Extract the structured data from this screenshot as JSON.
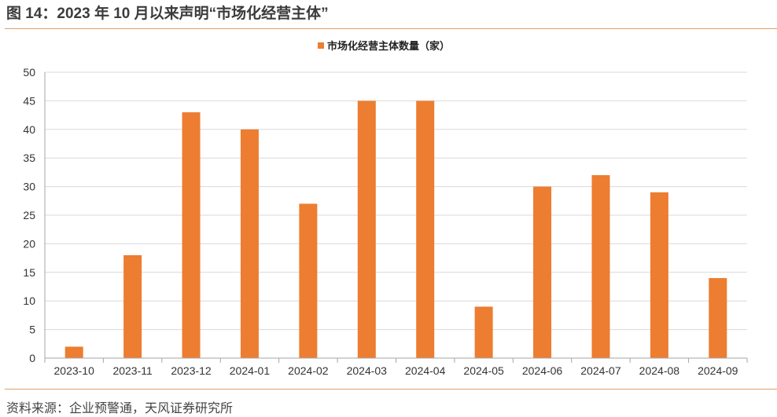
{
  "figure": {
    "title": "图 14：2023 年 10 月以来声明“市场化经营主体”",
    "source": "资料来源：企业预警通，天风证券研究所"
  },
  "colors": {
    "bar": "#ED7D31",
    "gridline": "#D9D9D9",
    "axis": "#A6A6A6",
    "rule": "#E0A06A"
  },
  "chart_data": {
    "type": "bar",
    "categories": [
      "2023-10",
      "2023-11",
      "2023-12",
      "2024-01",
      "2024-02",
      "2024-03",
      "2024-04",
      "2024-05",
      "2024-06",
      "2024-07",
      "2024-08",
      "2024-09"
    ],
    "series": [
      {
        "name": "市场化经营主体数量（家）",
        "values": [
          2,
          18,
          43,
          40,
          27,
          45,
          45,
          9,
          30,
          32,
          29,
          14
        ]
      }
    ],
    "yticks": [
      0,
      5,
      10,
      15,
      20,
      25,
      30,
      35,
      40,
      45,
      50
    ],
    "ylim": [
      0,
      50
    ],
    "grid": true,
    "legend_position": "top-center"
  }
}
